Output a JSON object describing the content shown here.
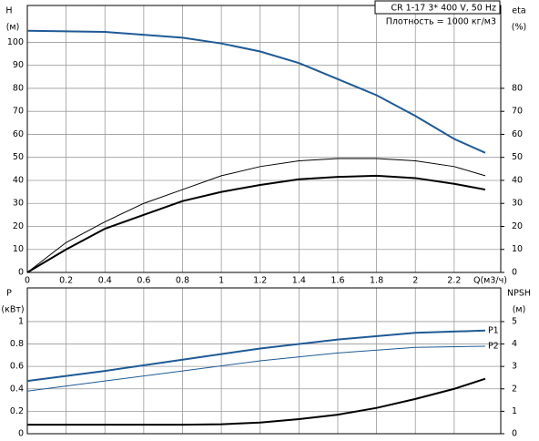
{
  "chart_data": [
    {
      "type": "line",
      "title": "CR 1-17    3* 400 V, 50 Hz",
      "subtitle": "Плотность = 1000 кг/м3",
      "x_label": "Q(м3/ч)",
      "y_label": "H",
      "y_unit": "(м)",
      "y2_label": "eta",
      "y2_unit": "(%)",
      "xlim": [
        0,
        2.44
      ],
      "xticks": [
        0,
        0.2,
        0.4,
        0.6,
        0.8,
        1,
        1.2,
        1.4,
        1.6,
        1.8,
        2,
        2.2
      ],
      "ylim": [
        0,
        116
      ],
      "yticks": [
        0,
        10,
        20,
        30,
        40,
        50,
        60,
        70,
        80,
        90,
        100
      ],
      "y2lim": [
        0,
        116
      ],
      "y2ticks": [
        0,
        10,
        20,
        30,
        40,
        50,
        60,
        70,
        80
      ],
      "grid": true,
      "series": [
        {
          "color": "#1f5a96",
          "width": 2,
          "x": [
            0,
            0.4,
            0.8,
            1,
            1.2,
            1.4,
            1.6,
            1.8,
            2,
            2.2,
            2.36
          ],
          "values": [
            105,
            104.5,
            102,
            99.5,
            96,
            91,
            84,
            77,
            68,
            58,
            52
          ]
        },
        {
          "color": "#000000",
          "width": 1,
          "axis": "y2",
          "x": [
            0,
            0.2,
            0.4,
            0.6,
            0.8,
            1,
            1.2,
            1.4,
            1.6,
            1.8,
            2,
            2.2,
            2.36
          ],
          "values": [
            0,
            13,
            22,
            30,
            36,
            42,
            46,
            48.5,
            49.5,
            49.5,
            48.5,
            46,
            42
          ]
        },
        {
          "color": "#000000",
          "width": 2,
          "axis": "y2",
          "x": [
            0,
            0.2,
            0.4,
            0.6,
            0.8,
            1,
            1.2,
            1.4,
            1.6,
            1.8,
            2,
            2.2,
            2.36
          ],
          "values": [
            0,
            10,
            19,
            25,
            31,
            35,
            38,
            40.5,
            41.5,
            42,
            41,
            38.5,
            36
          ]
        }
      ]
    },
    {
      "type": "line",
      "y_label": "P",
      "y_unit": "(кВт)",
      "y2_label": "NPSH",
      "y2_unit": "(м)",
      "xlim": [
        0,
        2.44
      ],
      "xticks": [
        0,
        0.2,
        0.4,
        0.6,
        0.8,
        1,
        1.2,
        1.4,
        1.6,
        1.8,
        2,
        2.2
      ],
      "ylim": [
        0,
        1.3
      ],
      "yticks": [
        0,
        0.2,
        0.4,
        0.6,
        0.8,
        1
      ],
      "y2lim": [
        0,
        6.5
      ],
      "y2ticks": [
        0,
        1,
        2,
        3,
        4,
        5
      ],
      "grid": true,
      "series": [
        {
          "name": "P1",
          "color": "#1f5a96",
          "width": 2,
          "x": [
            0,
            0.4,
            0.8,
            1.2,
            1.6,
            2,
            2.36
          ],
          "values": [
            0.47,
            0.56,
            0.66,
            0.76,
            0.84,
            0.9,
            0.92
          ]
        },
        {
          "name": "P2",
          "color": "#1f5a96",
          "width": 1,
          "x": [
            0,
            0.4,
            0.8,
            1.2,
            1.6,
            2,
            2.36
          ],
          "values": [
            0.38,
            0.47,
            0.56,
            0.65,
            0.72,
            0.77,
            0.78
          ]
        },
        {
          "color": "#000000",
          "width": 2,
          "axis": "y2",
          "x": [
            0,
            0.4,
            0.8,
            1,
            1.2,
            1.4,
            1.6,
            1.8,
            2,
            2.2,
            2.36
          ],
          "values": [
            0.4,
            0.4,
            0.4,
            0.42,
            0.5,
            0.65,
            0.85,
            1.15,
            1.55,
            2,
            2.45
          ]
        }
      ]
    }
  ]
}
